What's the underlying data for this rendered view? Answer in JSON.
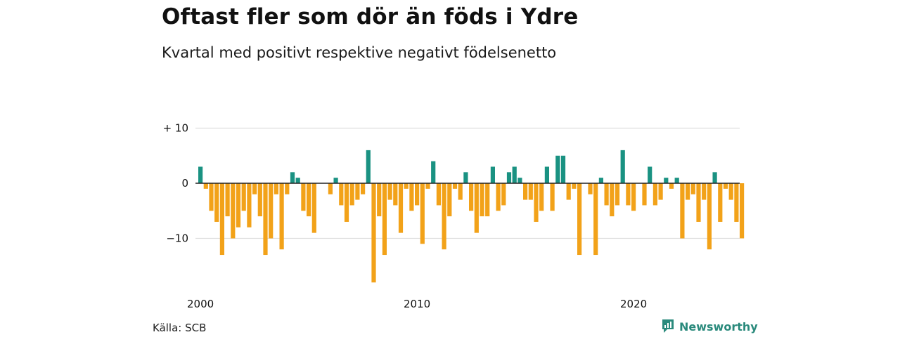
{
  "title": "Oftast fler som dör än föds i Ydre",
  "subtitle": "Kvartal med positivt respektive negativt födelsenetto",
  "source": "Källa: SCB",
  "brand": {
    "name": "Newsworthy",
    "icon": "newsworthy-logo-icon",
    "color": "#2a8a7c"
  },
  "colors": {
    "positive": "#1a9282",
    "negative": "#f2a219",
    "grid": "#dddddd",
    "baseline": "#222222"
  },
  "chart_data": {
    "type": "bar",
    "xlabel": "",
    "ylabel": "",
    "ylim": [
      -18,
      10
    ],
    "y_ticks": [
      {
        "value": 10,
        "label": "+ 10"
      },
      {
        "value": 0,
        "label": "0"
      },
      {
        "value": -10,
        "label": "−10"
      }
    ],
    "x_ticks": [
      {
        "index": 0,
        "label": "2000"
      },
      {
        "index": 40,
        "label": "2010"
      },
      {
        "index": 80,
        "label": "2020"
      }
    ],
    "grid": true,
    "start": "2000 Q1",
    "frequency": "quarterly",
    "values": [
      3,
      -1,
      -5,
      -7,
      -13,
      -6,
      -10,
      -8,
      -5,
      -8,
      -2,
      -6,
      -13,
      -10,
      -2,
      -12,
      -2,
      2,
      1,
      -5,
      -6,
      -9,
      0,
      0,
      -2,
      1,
      -4,
      -7,
      -4,
      -3,
      -2,
      6,
      -18,
      -6,
      -13,
      -3,
      -4,
      -9,
      -1,
      -5,
      -4,
      -11,
      -1,
      4,
      -4,
      -12,
      -6,
      -1,
      -3,
      2,
      -5,
      -9,
      -6,
      -6,
      3,
      -5,
      -4,
      2,
      3,
      1,
      -3,
      -3,
      -7,
      -5,
      3,
      -5,
      5,
      5,
      -3,
      -1,
      -13,
      0,
      -2,
      -13,
      1,
      -4,
      -6,
      -4,
      6,
      -4,
      -5,
      0,
      -4,
      3,
      -4,
      -3,
      1,
      -1,
      1,
      -10,
      -3,
      -2,
      -7,
      -3,
      -12,
      2,
      -7,
      -1,
      -3,
      -7,
      -10
    ]
  }
}
